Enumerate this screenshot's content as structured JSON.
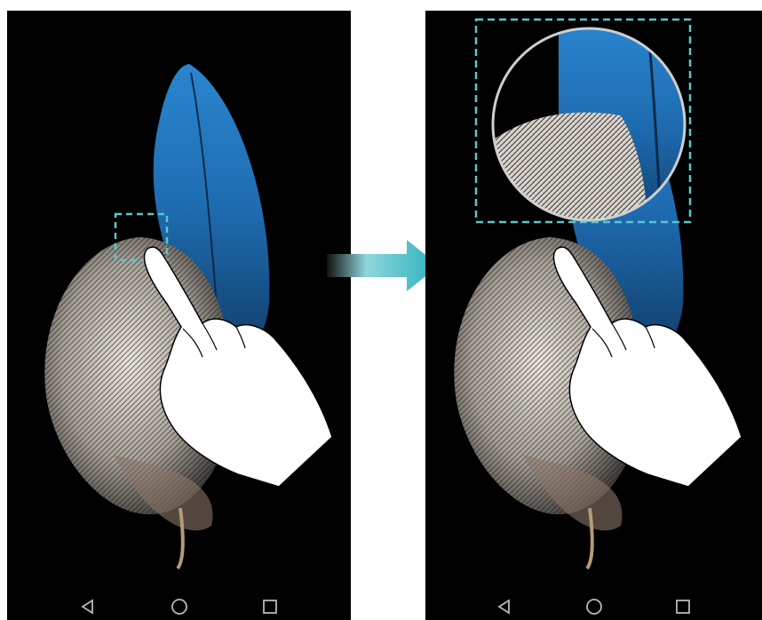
{
  "figure": {
    "steps": [
      {
        "id": "before",
        "description_icon": "tap-gesture-hand-icon",
        "selection": "small-dashed-square"
      },
      {
        "id": "after",
        "description_icon": "magnifier-zoom-icon",
        "selection": "large-dashed-rectangle"
      }
    ],
    "navbar": {
      "buttons": [
        "back-icon",
        "home-icon",
        "recents-icon"
      ]
    },
    "colors": {
      "screen_bg": "#000000",
      "feather_blue": "#1f6fb5",
      "feather_white": "#d8d3cc",
      "dashed_selection": "#55c8d0",
      "arrow": "#2bb2bd",
      "navbar_icon": "#b8b8b8"
    }
  }
}
